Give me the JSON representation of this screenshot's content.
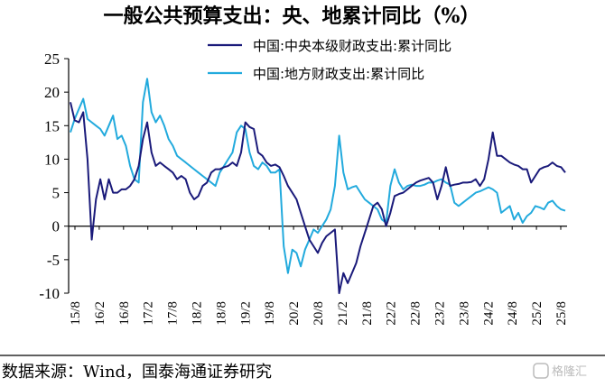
{
  "chart_data": {
    "type": "line",
    "title": "一般公共预算支出：央、地累计同比（%）",
    "source": "数据来源：Wind，国泰海通证券研究",
    "watermark": "格隆汇",
    "ylim": [
      -10,
      25
    ],
    "yticks": [
      -10,
      -5,
      0,
      5,
      10,
      15,
      20,
      25
    ],
    "x_labels": [
      "15/8",
      "16/2",
      "16/8",
      "17/2",
      "17/8",
      "18/2",
      "18/8",
      "19/2",
      "19/8",
      "20/2",
      "20/8",
      "21/2",
      "21/8",
      "22/2",
      "22/8",
      "23/2",
      "23/8",
      "24/2",
      "24/8",
      "25/2",
      "25/8"
    ],
    "grid": false,
    "legend_position": "top-right",
    "series": [
      {
        "name": "中国:中央本级财政支出:累计同比",
        "color": "#1a1a7a",
        "values": [
          18.5,
          15.8,
          15.5,
          17.0,
          10.0,
          -2.0,
          4.0,
          7.0,
          4.0,
          7.0,
          5.0,
          5.0,
          5.5,
          5.5,
          6.0,
          7.0,
          9.0,
          13.0,
          15.5,
          11.0,
          9.0,
          9.5,
          9.0,
          8.5,
          8.0,
          7.0,
          7.5,
          7.0,
          5.0,
          4.0,
          4.5,
          6.0,
          6.5,
          8.0,
          8.5,
          8.5,
          8.8,
          9.0,
          9.5,
          9.0,
          11.0,
          15.5,
          14.8,
          14.5,
          11.0,
          10.5,
          9.5,
          9.0,
          9.2,
          8.8,
          7.5,
          6.0,
          5.0,
          4.0,
          2.0,
          0.0,
          -2.0,
          -3.0,
          -4.0,
          -2.5,
          -1.5,
          -1.0,
          -0.5,
          -10.0,
          -7.0,
          -8.5,
          -7.0,
          -5.5,
          -3.0,
          -1.0,
          1.0,
          3.0,
          3.5,
          2.5,
          0.0,
          2.0,
          4.5,
          4.8,
          5.0,
          5.5,
          6.0,
          6.5,
          6.8,
          7.0,
          7.2,
          6.5,
          4.0,
          6.0,
          8.8,
          6.0,
          6.2,
          6.3,
          6.5,
          6.5,
          6.6,
          7.0,
          6.0,
          7.0,
          10.0,
          14.0,
          10.5,
          10.5,
          10.0,
          9.5,
          9.2,
          9.0,
          8.5,
          8.5,
          6.5,
          7.5,
          8.5,
          8.8,
          9.0,
          9.5,
          9.0,
          8.8,
          8.0
        ]
      },
      {
        "name": "中国:地方财政支出:累计同比",
        "color": "#22aadd",
        "values": [
          14.0,
          16.0,
          17.5,
          19.0,
          16.0,
          15.5,
          15.0,
          14.5,
          13.5,
          15.0,
          16.5,
          13.0,
          13.5,
          12.0,
          9.0,
          7.0,
          6.5,
          18.5,
          22.0,
          17.0,
          15.5,
          16.5,
          15.0,
          13.0,
          12.0,
          10.5,
          10.0,
          9.5,
          9.0,
          8.5,
          8.0,
          7.5,
          7.0,
          6.5,
          6.0,
          8.0,
          9.0,
          10.0,
          11.0,
          14.0,
          15.0,
          14.5,
          11.0,
          9.0,
          8.5,
          9.5,
          9.0,
          8.0,
          8.0,
          8.5,
          -3.0,
          -7.0,
          -3.5,
          -4.0,
          -6.0,
          -3.5,
          -2.0,
          -0.5,
          -1.0,
          0.0,
          1.0,
          2.5,
          6.0,
          13.5,
          8.0,
          5.5,
          5.8,
          6.0,
          5.0,
          4.0,
          3.5,
          3.0,
          2.5,
          1.0,
          0.5,
          6.0,
          8.5,
          6.5,
          5.5,
          6.0,
          6.2,
          6.0,
          6.0,
          6.2,
          6.5,
          6.5,
          6.8,
          7.0,
          6.5,
          6.2,
          3.5,
          3.0,
          3.5,
          4.0,
          4.5,
          5.0,
          5.2,
          5.5,
          5.8,
          5.5,
          5.0,
          2.0,
          2.5,
          3.0,
          1.0,
          2.0,
          0.5,
          1.5,
          2.0,
          3.0,
          2.8,
          2.5,
          3.5,
          3.8,
          3.0,
          2.5,
          2.3
        ]
      }
    ]
  }
}
